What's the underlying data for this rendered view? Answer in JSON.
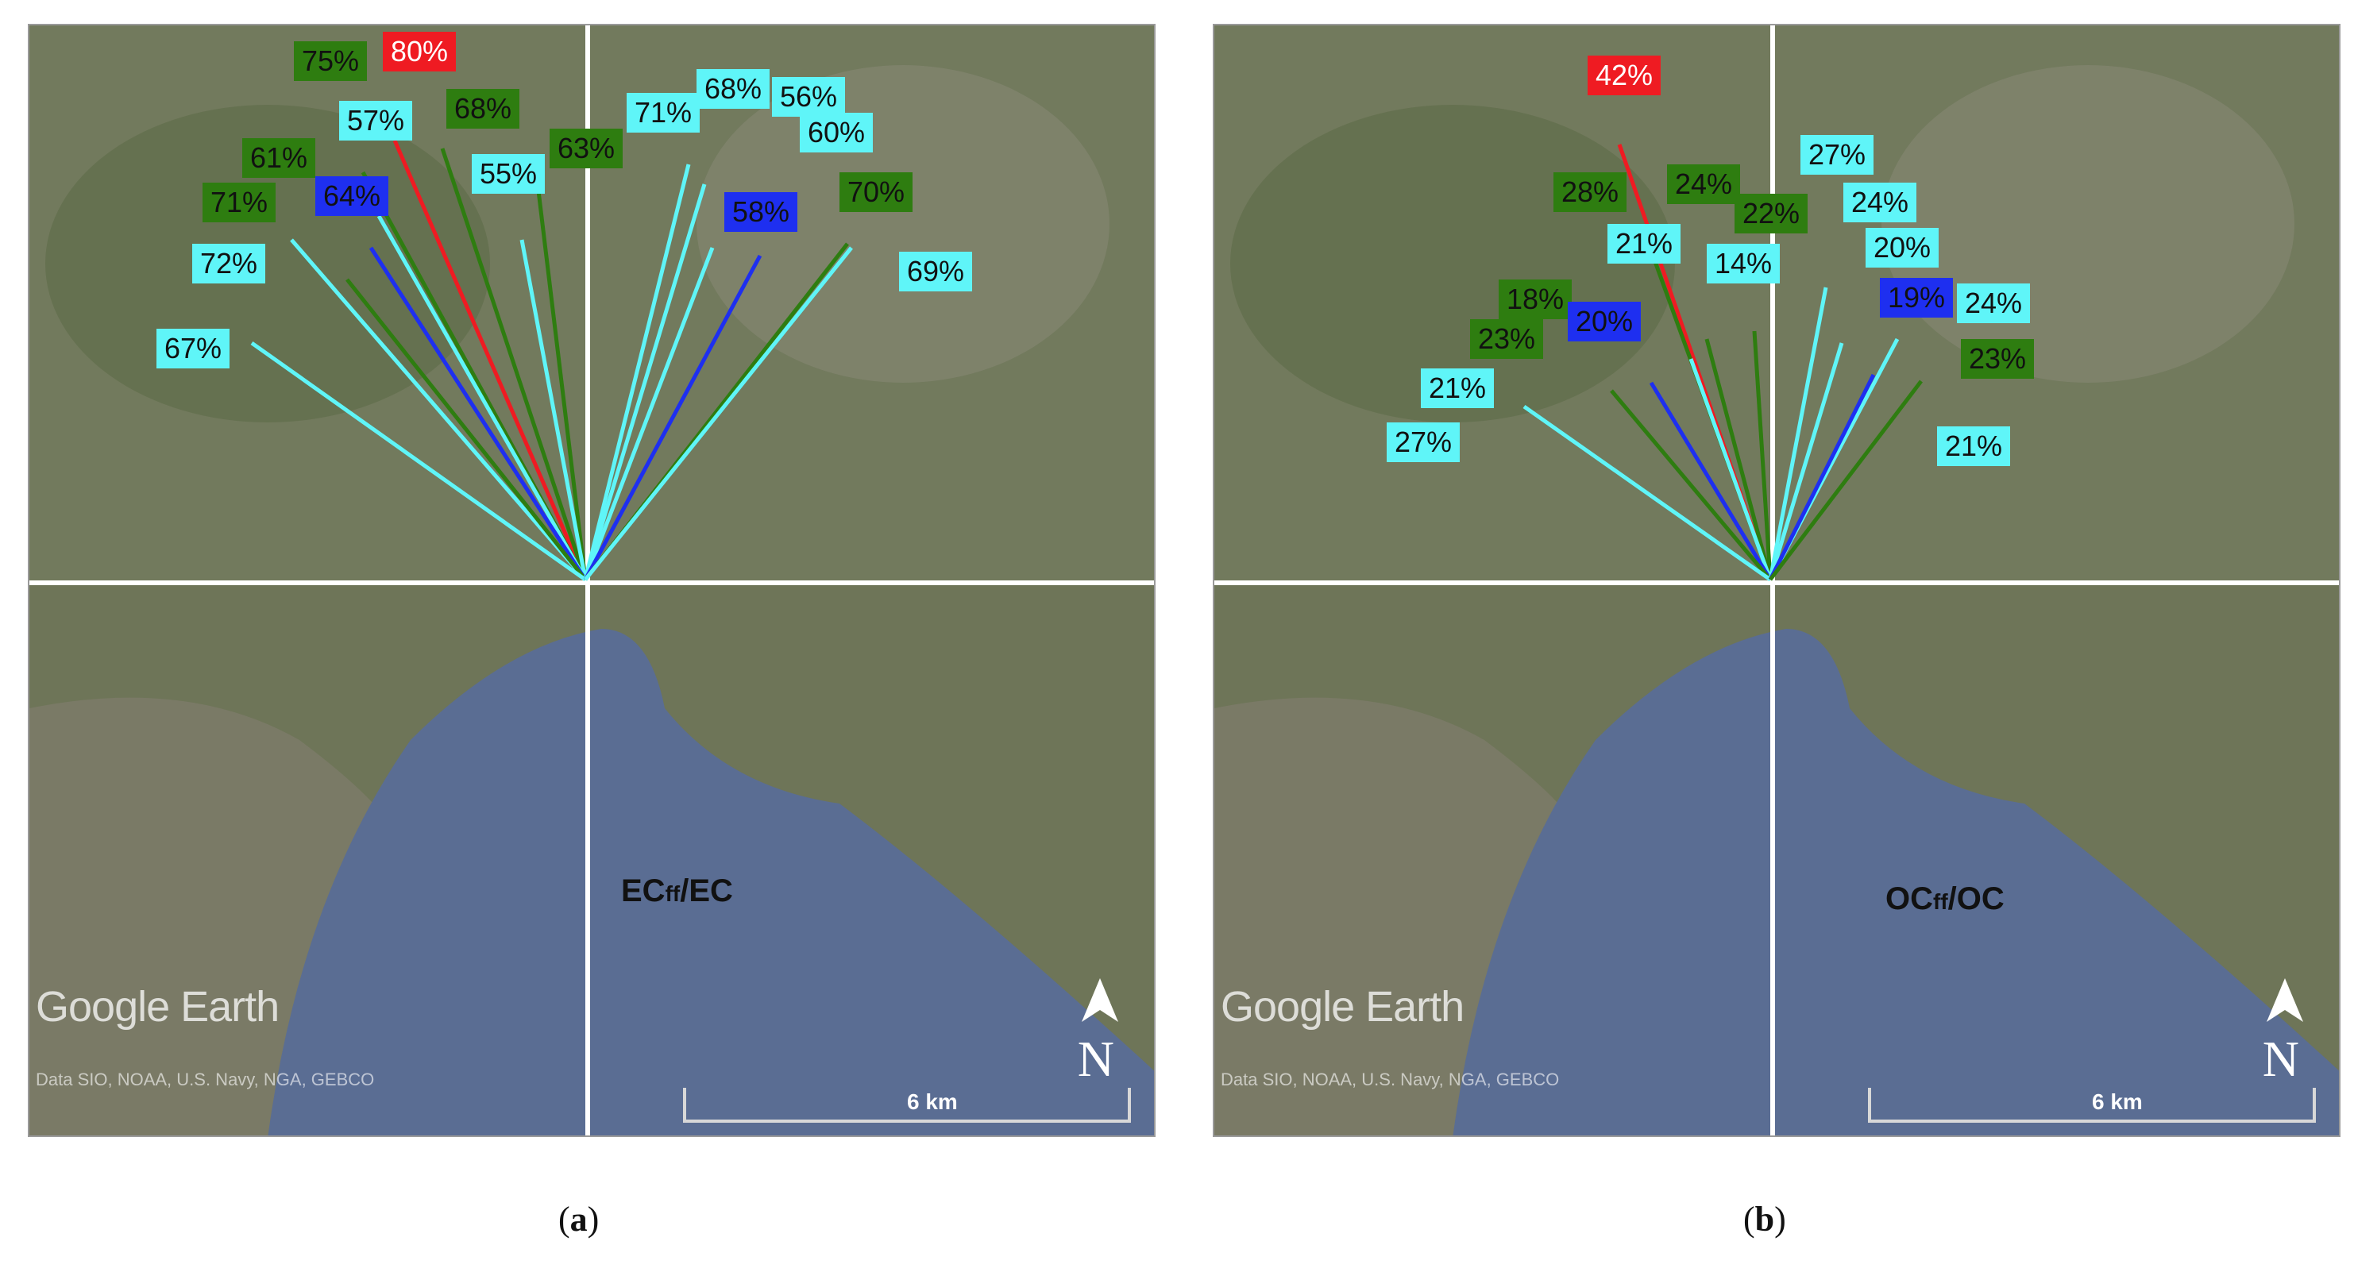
{
  "panels": [
    {
      "id": "a",
      "overlay_title_main": "EC",
      "overlay_title_sub": "ff",
      "overlay_title_rest": "/EC",
      "caption_open": "(",
      "caption_letter": "a",
      "caption_close": ")",
      "brand": "Google Earth",
      "credits": "Data SIO, NOAA, U.S. Navy, NGA, GEBCO",
      "north_letter": "N",
      "scale_label": "6 km",
      "labels": [
        {
          "text": "75%",
          "color": "green"
        },
        {
          "text": "80%",
          "color": "red"
        },
        {
          "text": "57%",
          "color": "cyan"
        },
        {
          "text": "68%",
          "color": "green"
        },
        {
          "text": "61%",
          "color": "green"
        },
        {
          "text": "55%",
          "color": "cyan"
        },
        {
          "text": "63%",
          "color": "green"
        },
        {
          "text": "71%",
          "color": "green"
        },
        {
          "text": "64%",
          "color": "blue"
        },
        {
          "text": "72%",
          "color": "cyan"
        },
        {
          "text": "67%",
          "color": "cyan"
        },
        {
          "text": "71%",
          "color": "cyan"
        },
        {
          "text": "68%",
          "color": "cyan"
        },
        {
          "text": "56%",
          "color": "cyan"
        },
        {
          "text": "60%",
          "color": "cyan"
        },
        {
          "text": "58%",
          "color": "blue"
        },
        {
          "text": "70%",
          "color": "green"
        },
        {
          "text": "69%",
          "color": "cyan"
        }
      ]
    },
    {
      "id": "b",
      "overlay_title_main": "OC",
      "overlay_title_sub": "ff",
      "overlay_title_rest": "/OC",
      "caption_open": "(",
      "caption_letter": "b",
      "caption_close": ")",
      "brand": "Google Earth",
      "credits": "Data SIO, NOAA, U.S. Navy, NGA, GEBCO",
      "north_letter": "N",
      "scale_label": "6 km",
      "labels": [
        {
          "text": "42%",
          "color": "red"
        },
        {
          "text": "28%",
          "color": "green"
        },
        {
          "text": "24%",
          "color": "green"
        },
        {
          "text": "22%",
          "color": "green"
        },
        {
          "text": "21%",
          "color": "cyan"
        },
        {
          "text": "14%",
          "color": "cyan"
        },
        {
          "text": "18%",
          "color": "green"
        },
        {
          "text": "20%",
          "color": "blue"
        },
        {
          "text": "23%",
          "color": "green"
        },
        {
          "text": "21%",
          "color": "cyan"
        },
        {
          "text": "27%",
          "color": "cyan"
        },
        {
          "text": "27%",
          "color": "cyan"
        },
        {
          "text": "24%",
          "color": "cyan"
        },
        {
          "text": "20%",
          "color": "cyan"
        },
        {
          "text": "19%",
          "color": "blue"
        },
        {
          "text": "24%",
          "color": "cyan"
        },
        {
          "text": "23%",
          "color": "green"
        },
        {
          "text": "21%",
          "color": "cyan"
        }
      ]
    }
  ],
  "colors": {
    "cyan": "#5ff5f8",
    "green": "#2e7d10",
    "blue": "#1e2ff0",
    "red": "#ef1b22",
    "land": "#6e7558",
    "sea": "#586a8f",
    "grid": "#ffffff"
  }
}
